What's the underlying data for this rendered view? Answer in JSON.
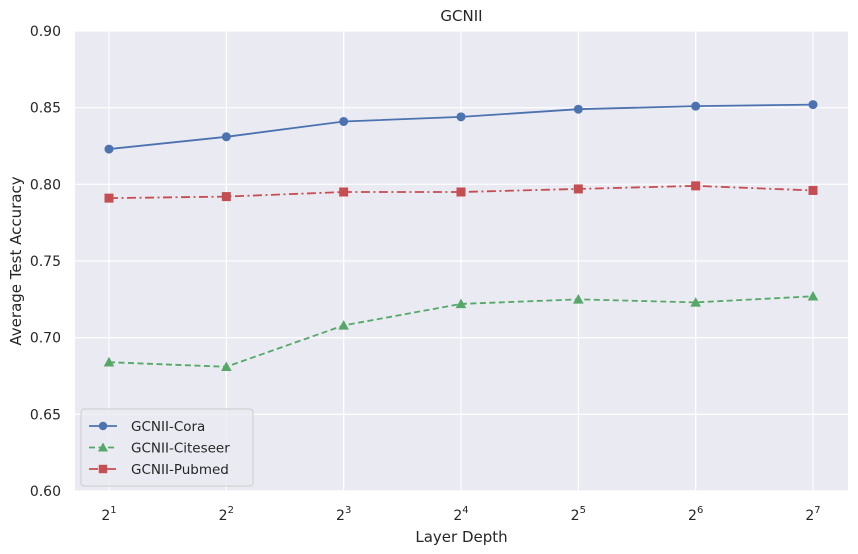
{
  "chart_data": {
    "type": "line",
    "title": "GCNII",
    "xlabel": "Layer Depth",
    "ylabel": "Average Test Accuracy",
    "x_base": "2",
    "x_exponents": [
      "1",
      "2",
      "3",
      "4",
      "5",
      "6",
      "7"
    ],
    "y_ticks": [
      "0.60",
      "0.65",
      "0.70",
      "0.75",
      "0.80",
      "0.85",
      "0.90"
    ],
    "ylim": [
      0.6,
      0.9
    ],
    "grid": true,
    "legend_position": "lower-left",
    "series": [
      {
        "name": "GCNII-Cora",
        "values": [
          0.823,
          0.831,
          0.841,
          0.844,
          0.849,
          0.851,
          0.852
        ],
        "color": "#4C72B0",
        "linestyle": "solid",
        "marker": "circle"
      },
      {
        "name": "GCNII-Citeseer",
        "values": [
          0.684,
          0.681,
          0.708,
          0.722,
          0.725,
          0.723,
          0.727
        ],
        "color": "#55A868",
        "linestyle": "dashed",
        "marker": "triangle"
      },
      {
        "name": "GCNII-Pubmed",
        "values": [
          0.791,
          0.792,
          0.795,
          0.795,
          0.797,
          0.799,
          0.796
        ],
        "color": "#C44E52",
        "linestyle": "dashdot",
        "marker": "square"
      }
    ]
  },
  "colors": {
    "plot_background": "#EAEAF2",
    "grid": "#FFFFFF",
    "text": "#262626"
  }
}
